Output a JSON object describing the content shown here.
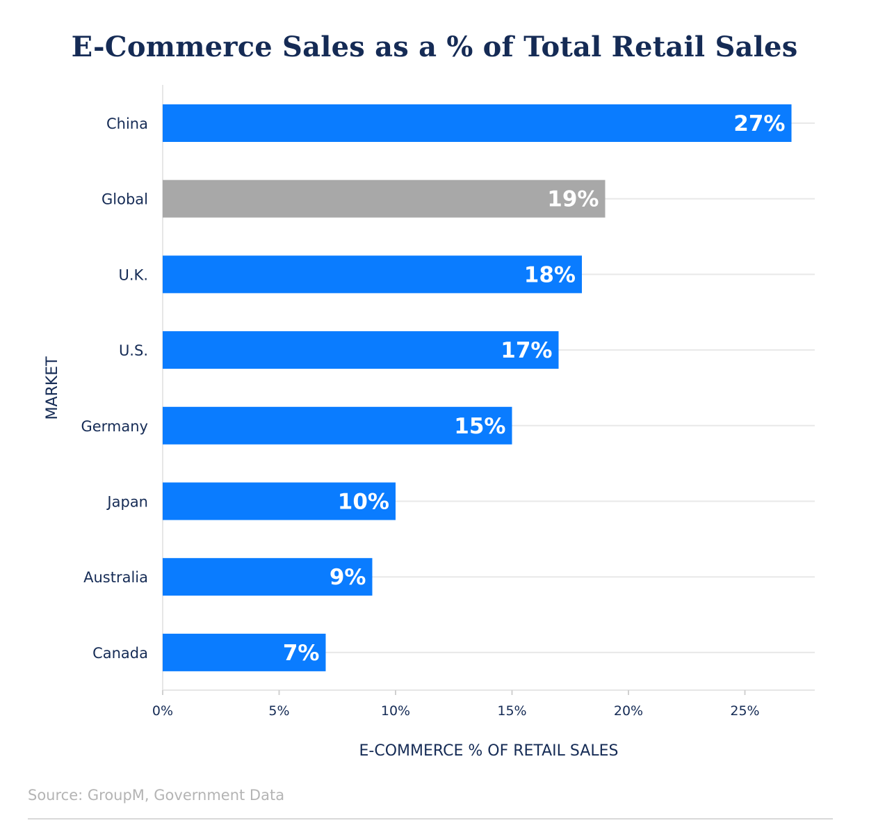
{
  "chart_data": {
    "type": "bar",
    "orientation": "horizontal",
    "title": "E-Commerce Sales as a % of Total Retail Sales",
    "xlabel": "E-COMMERCE % OF RETAIL SALES",
    "ylabel": "MARKET",
    "categories": [
      "China",
      "Global",
      "U.K.",
      "U.S.",
      "Germany",
      "Japan",
      "Australia",
      "Canada"
    ],
    "values": [
      27,
      19,
      18,
      17,
      15,
      10,
      9,
      7
    ],
    "data_labels": [
      "27%",
      "19%",
      "18%",
      "17%",
      "15%",
      "10%",
      "9%",
      "7%"
    ],
    "bar_colors": [
      "#0a7cff",
      "#a8a8a8",
      "#0a7cff",
      "#0a7cff",
      "#0a7cff",
      "#0a7cff",
      "#0a7cff",
      "#0a7cff"
    ],
    "xlim": [
      0,
      28
    ],
    "xticks": [
      0,
      5,
      10,
      15,
      20,
      25
    ],
    "xtick_labels": [
      "0%",
      "5%",
      "10%",
      "15%",
      "20%",
      "25%"
    ],
    "grid": true,
    "legend": "none"
  },
  "source": "Source: GroupM, Government Data",
  "colors": {
    "highlight": "#0a7cff",
    "global": "#a8a8a8",
    "text": "#152b55",
    "gridline": "#e8e8e8"
  }
}
